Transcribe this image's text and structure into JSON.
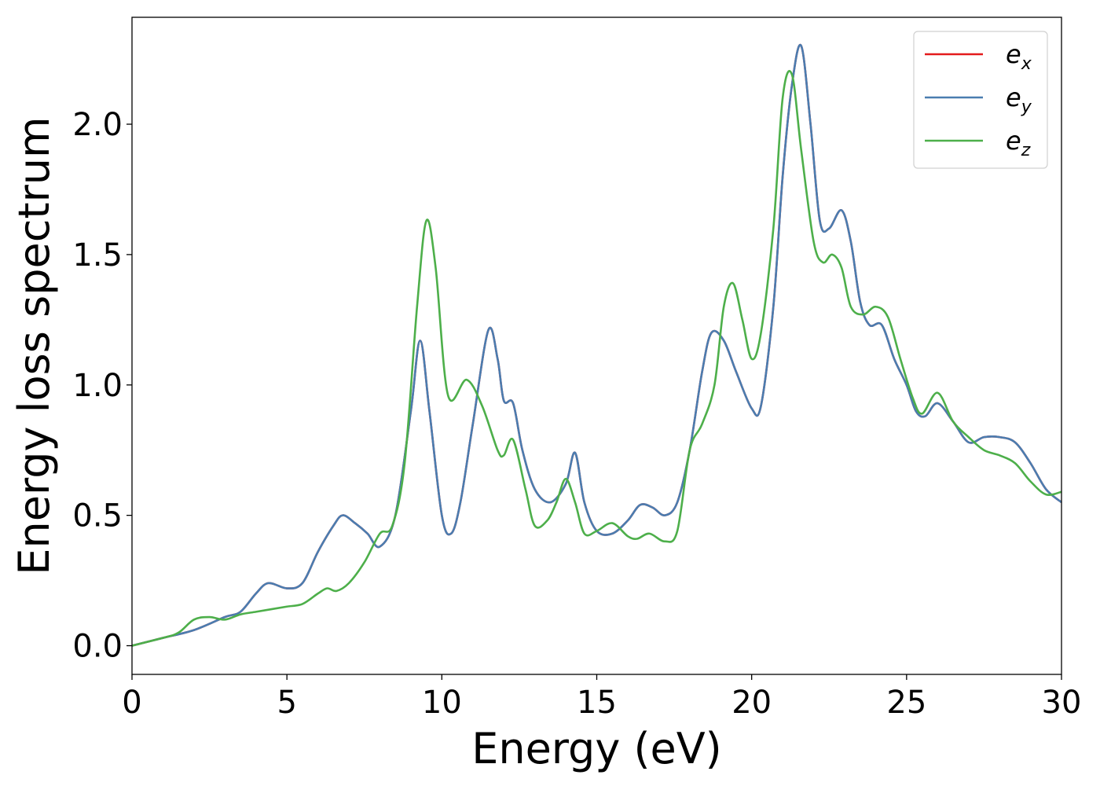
{
  "chart_data": {
    "type": "line",
    "xlabel": "Energy (eV)",
    "ylabel": "Energy loss spectrum",
    "xlim": [
      0,
      30
    ],
    "ylim": [
      -0.11,
      2.41
    ],
    "x_ticks": [
      0,
      5,
      10,
      15,
      20,
      25,
      30
    ],
    "x_tick_labels": [
      "0",
      "5",
      "10",
      "15",
      "20",
      "25",
      "30"
    ],
    "y_ticks": [
      0.0,
      0.5,
      1.0,
      1.5,
      2.0
    ],
    "y_tick_labels": [
      "0.0",
      "0.5",
      "1.0",
      "1.5",
      "2.0"
    ],
    "grid": false,
    "legend_position": "top-right",
    "series": [
      {
        "name": "e",
        "subscript": "x",
        "color": "#e41a1c",
        "x": [
          0,
          1,
          2,
          3,
          3.5,
          4,
          4.4,
          5,
          5.5,
          6,
          6.5,
          6.8,
          7.2,
          7.6,
          8,
          8.5,
          9,
          9.3,
          9.6,
          10,
          10.3,
          10.6,
          11,
          11.5,
          11.8,
          12,
          12.3,
          12.6,
          13,
          13.5,
          14,
          14.3,
          14.6,
          15,
          15.5,
          16,
          16.4,
          16.8,
          17.2,
          17.6,
          18,
          18.4,
          18.7,
          19.1,
          19.5,
          20,
          20.3,
          20.7,
          21,
          21.3,
          21.6,
          21.9,
          22.2,
          22.5,
          22.9,
          23.2,
          23.5,
          23.8,
          24.2,
          24.6,
          25,
          25.3,
          25.6,
          26,
          26.5,
          27,
          27.5,
          28,
          28.5,
          29,
          29.5,
          30
        ],
        "values": [
          0,
          0.03,
          0.06,
          0.11,
          0.13,
          0.2,
          0.24,
          0.22,
          0.24,
          0.36,
          0.46,
          0.5,
          0.47,
          0.43,
          0.38,
          0.5,
          0.9,
          1.17,
          0.9,
          0.5,
          0.43,
          0.55,
          0.85,
          1.21,
          1.1,
          0.94,
          0.93,
          0.75,
          0.6,
          0.55,
          0.62,
          0.74,
          0.55,
          0.44,
          0.43,
          0.48,
          0.54,
          0.53,
          0.5,
          0.55,
          0.75,
          1.05,
          1.2,
          1.17,
          1.05,
          0.91,
          0.92,
          1.3,
          1.8,
          2.15,
          2.3,
          2.0,
          1.63,
          1.6,
          1.67,
          1.55,
          1.32,
          1.23,
          1.23,
          1.1,
          1.0,
          0.9,
          0.88,
          0.93,
          0.86,
          0.78,
          0.8,
          0.8,
          0.78,
          0.7,
          0.6,
          0.55
        ]
      },
      {
        "name": "e",
        "subscript": "y",
        "color": "#4a7db0",
        "x": [
          0,
          1,
          2,
          3,
          3.5,
          4,
          4.4,
          5,
          5.5,
          6,
          6.5,
          6.8,
          7.2,
          7.6,
          8,
          8.5,
          9,
          9.3,
          9.6,
          10,
          10.3,
          10.6,
          11,
          11.5,
          11.8,
          12,
          12.3,
          12.6,
          13,
          13.5,
          14,
          14.3,
          14.6,
          15,
          15.5,
          16,
          16.4,
          16.8,
          17.2,
          17.6,
          18,
          18.4,
          18.7,
          19.1,
          19.5,
          20,
          20.3,
          20.7,
          21,
          21.3,
          21.6,
          21.9,
          22.2,
          22.5,
          22.9,
          23.2,
          23.5,
          23.8,
          24.2,
          24.6,
          25,
          25.3,
          25.6,
          26,
          26.5,
          27,
          27.5,
          28,
          28.5,
          29,
          29.5,
          30
        ],
        "values": [
          0,
          0.03,
          0.06,
          0.11,
          0.13,
          0.2,
          0.24,
          0.22,
          0.24,
          0.36,
          0.46,
          0.5,
          0.47,
          0.43,
          0.38,
          0.5,
          0.9,
          1.17,
          0.9,
          0.5,
          0.43,
          0.55,
          0.85,
          1.21,
          1.1,
          0.94,
          0.93,
          0.75,
          0.6,
          0.55,
          0.62,
          0.74,
          0.55,
          0.44,
          0.43,
          0.48,
          0.54,
          0.53,
          0.5,
          0.55,
          0.75,
          1.05,
          1.2,
          1.17,
          1.05,
          0.91,
          0.92,
          1.3,
          1.8,
          2.15,
          2.3,
          2.0,
          1.63,
          1.6,
          1.67,
          1.55,
          1.32,
          1.23,
          1.23,
          1.1,
          1.0,
          0.9,
          0.88,
          0.93,
          0.86,
          0.78,
          0.8,
          0.8,
          0.78,
          0.7,
          0.6,
          0.55
        ]
      },
      {
        "name": "e",
        "subscript": "z",
        "color": "#4daf4a",
        "x": [
          0,
          1,
          1.5,
          2,
          2.5,
          3,
          3.5,
          4,
          4.5,
          5,
          5.5,
          6,
          6.3,
          6.6,
          7,
          7.5,
          8,
          8.4,
          8.8,
          9.2,
          9.5,
          9.8,
          10.2,
          10.8,
          11.3,
          11.8,
          12,
          12.3,
          12.7,
          13,
          13.4,
          13.7,
          14,
          14.3,
          14.6,
          15,
          15.5,
          16,
          16.3,
          16.7,
          17.2,
          17.6,
          18,
          18.4,
          18.8,
          19.1,
          19.4,
          19.7,
          20,
          20.3,
          20.7,
          21,
          21.3,
          21.6,
          22,
          22.3,
          22.6,
          22.9,
          23.2,
          23.6,
          24,
          24.4,
          24.8,
          25.2,
          25.5,
          26,
          26.5,
          27,
          27.5,
          28,
          28.5,
          29,
          29.5,
          30
        ],
        "values": [
          0,
          0.03,
          0.05,
          0.1,
          0.11,
          0.1,
          0.12,
          0.13,
          0.14,
          0.15,
          0.16,
          0.2,
          0.22,
          0.21,
          0.24,
          0.32,
          0.43,
          0.46,
          0.7,
          1.3,
          1.63,
          1.45,
          0.96,
          1.02,
          0.92,
          0.75,
          0.73,
          0.79,
          0.6,
          0.46,
          0.48,
          0.55,
          0.64,
          0.55,
          0.43,
          0.44,
          0.47,
          0.42,
          0.41,
          0.43,
          0.4,
          0.44,
          0.75,
          0.85,
          1.0,
          1.3,
          1.39,
          1.25,
          1.1,
          1.2,
          1.6,
          2.1,
          2.19,
          1.9,
          1.55,
          1.47,
          1.5,
          1.45,
          1.3,
          1.27,
          1.3,
          1.26,
          1.1,
          0.95,
          0.89,
          0.97,
          0.86,
          0.8,
          0.75,
          0.73,
          0.7,
          0.63,
          0.58,
          0.59
        ]
      }
    ]
  }
}
